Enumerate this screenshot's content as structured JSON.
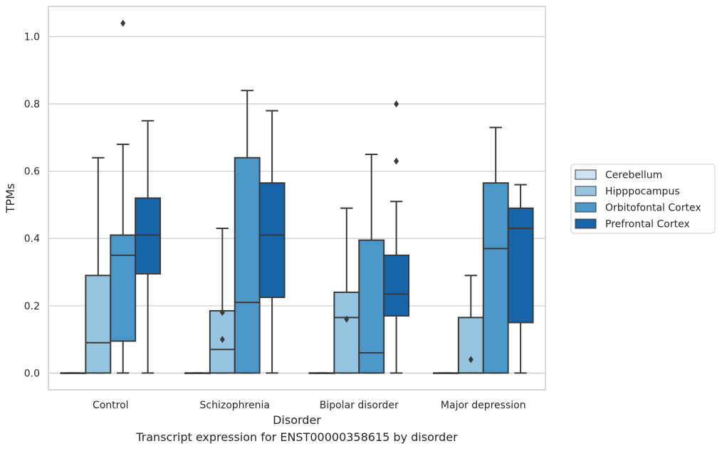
{
  "caption": "Transcript expression for ENST00000358615 by disorder",
  "chart_data": {
    "type": "box",
    "xlabel": "Disorder",
    "ylabel": "TPMs",
    "ylim": [
      -0.05,
      1.09
    ],
    "yticks": [
      0.0,
      0.2,
      0.4,
      0.6,
      0.8,
      1.0
    ],
    "ytick_labels": [
      "0.0",
      "0.2",
      "0.4",
      "0.6",
      "0.8",
      "1.0"
    ],
    "grid": "horizontal",
    "legend_position": "right",
    "categories": [
      "Control",
      "Schizophrenia",
      "Bipolar disorder",
      "Major depression"
    ],
    "series": [
      {
        "name": "Cerebellum",
        "color": "#d0e1f2",
        "boxes": [
          {
            "whislo": 0.0,
            "q1": 0.0,
            "med": 0.0,
            "q3": 0.0,
            "whishi": 0.0,
            "fliers": []
          },
          {
            "whislo": 0.0,
            "q1": 0.0,
            "med": 0.0,
            "q3": 0.0,
            "whishi": 0.0,
            "fliers": []
          },
          {
            "whislo": 0.0,
            "q1": 0.0,
            "med": 0.0,
            "q3": 0.0,
            "whishi": 0.0,
            "fliers": []
          },
          {
            "whislo": 0.0,
            "q1": 0.0,
            "med": 0.0,
            "q3": 0.0,
            "whishi": 0.0,
            "fliers": []
          }
        ]
      },
      {
        "name": "Hipppocampus",
        "color": "#94c4df",
        "boxes": [
          {
            "whislo": 0.0,
            "q1": 0.0,
            "med": 0.09,
            "q3": 0.29,
            "whishi": 0.64,
            "fliers": []
          },
          {
            "whislo": 0.0,
            "q1": 0.0,
            "med": 0.07,
            "q3": 0.185,
            "whishi": 0.43,
            "fliers": [
              0.18,
              0.1
            ]
          },
          {
            "whislo": 0.0,
            "q1": 0.0,
            "med": 0.165,
            "q3": 0.24,
            "whishi": 0.49,
            "fliers": [
              0.16
            ]
          },
          {
            "whislo": 0.0,
            "q1": 0.0,
            "med": 0.0,
            "q3": 0.165,
            "whishi": 0.29,
            "fliers": [
              0.04
            ]
          }
        ]
      },
      {
        "name": "Orbitofontal Cortex",
        "color": "#4a98c9",
        "boxes": [
          {
            "whislo": 0.0,
            "q1": 0.095,
            "med": 0.35,
            "q3": 0.41,
            "whishi": 0.68,
            "fliers": [
              1.04
            ]
          },
          {
            "whislo": 0.0,
            "q1": 0.0,
            "med": 0.21,
            "q3": 0.64,
            "whishi": 0.84,
            "fliers": []
          },
          {
            "whislo": 0.0,
            "q1": 0.0,
            "med": 0.06,
            "q3": 0.395,
            "whishi": 0.65,
            "fliers": []
          },
          {
            "whislo": 0.0,
            "q1": 0.0,
            "med": 0.37,
            "q3": 0.565,
            "whishi": 0.73,
            "fliers": []
          }
        ]
      },
      {
        "name": "Prefrontal Cortex",
        "color": "#1764ab",
        "boxes": [
          {
            "whislo": 0.0,
            "q1": 0.295,
            "med": 0.41,
            "q3": 0.52,
            "whishi": 0.75,
            "fliers": []
          },
          {
            "whislo": 0.0,
            "q1": 0.225,
            "med": 0.41,
            "q3": 0.565,
            "whishi": 0.78,
            "fliers": []
          },
          {
            "whislo": 0.0,
            "q1": 0.17,
            "med": 0.235,
            "q3": 0.35,
            "whishi": 0.51,
            "fliers": [
              0.8,
              0.63
            ]
          },
          {
            "whislo": 0.0,
            "q1": 0.15,
            "med": 0.43,
            "q3": 0.49,
            "whishi": 0.56,
            "fliers": []
          }
        ]
      }
    ]
  }
}
